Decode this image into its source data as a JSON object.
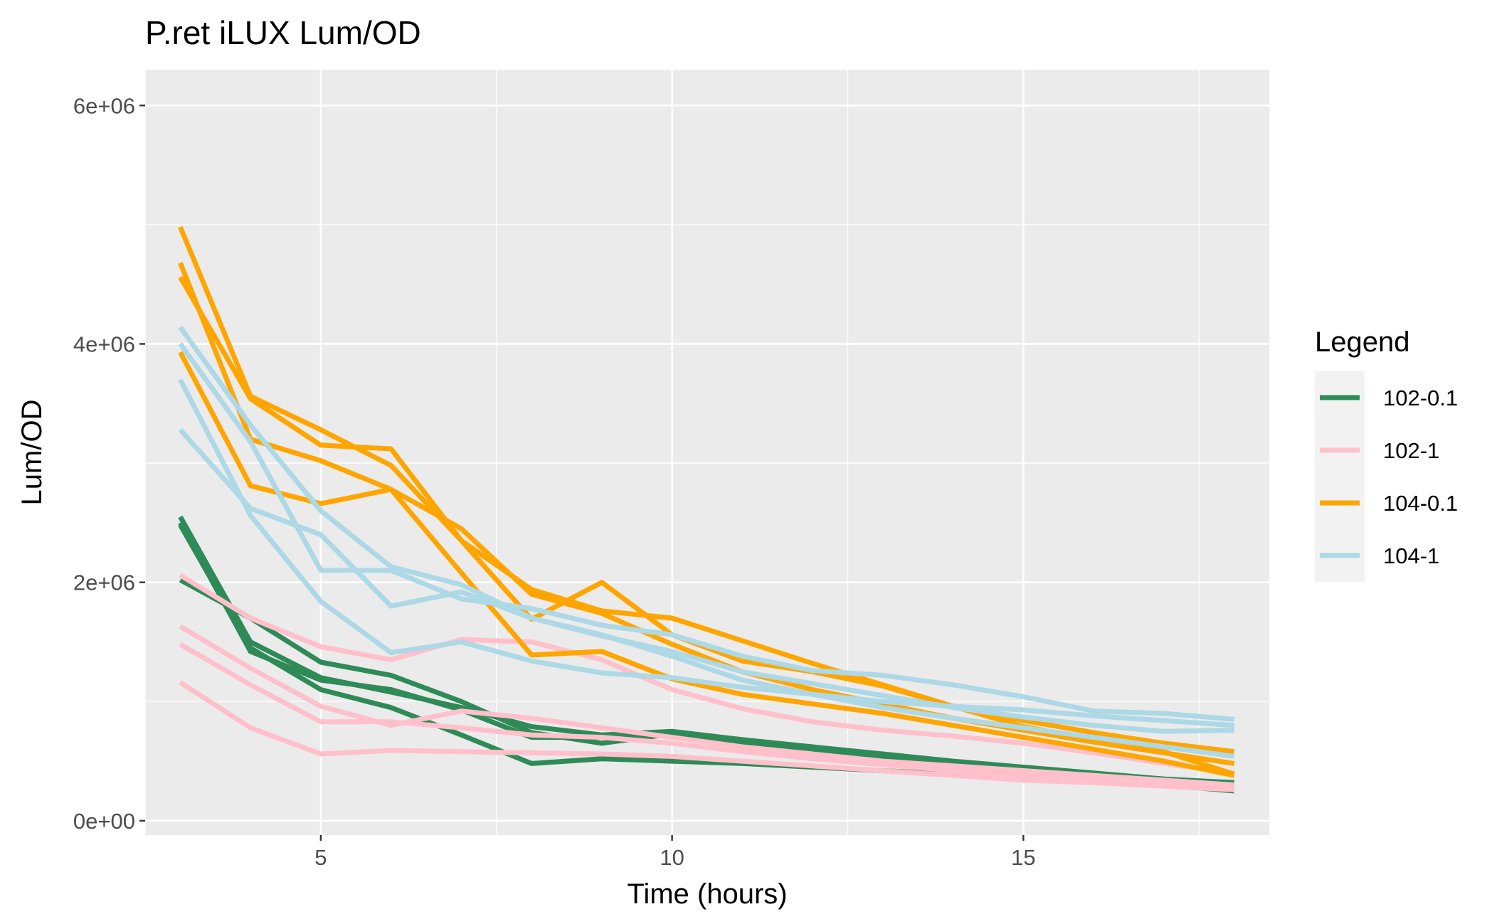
{
  "chart_data": {
    "type": "line",
    "title": "P.ret iLUX Lum/OD",
    "xlabel": "Time (hours)",
    "ylabel": "Lum/OD",
    "xlim": [
      2.5,
      18.5
    ],
    "ylim": [
      -120000,
      6300000
    ],
    "x_ticks": [
      5,
      10,
      15
    ],
    "x_tick_labels": [
      "5",
      "10",
      "15"
    ],
    "y_ticks": [
      0,
      2000000,
      4000000,
      6000000
    ],
    "y_tick_labels": [
      "0e+00",
      "2e+06",
      "4e+06",
      "6e+06"
    ],
    "grid": true,
    "legend": {
      "title": "Legend",
      "position": "right"
    },
    "x": [
      3,
      4,
      5,
      6,
      7,
      8,
      9,
      10,
      11,
      12,
      13,
      14,
      15,
      16,
      17,
      18
    ],
    "groups": [
      {
        "name": "102-0.1",
        "color": "#2e8b57",
        "lines": [
          [
            2550000,
            1500000,
            1200000,
            1080000,
            950000,
            790000,
            720000,
            750000,
            680000,
            620000,
            560000,
            500000,
            450000,
            400000,
            350000,
            300000
          ],
          [
            2480000,
            1450000,
            1100000,
            950000,
            720000,
            480000,
            520000,
            500000,
            480000,
            450000,
            420000,
            390000,
            360000,
            330000,
            300000,
            250000
          ],
          [
            2020000,
            1700000,
            1330000,
            1220000,
            1000000,
            740000,
            650000,
            730000,
            650000,
            580000,
            520000,
            470000,
            420000,
            380000,
            340000,
            320000
          ],
          [
            2500000,
            1420000,
            1180000,
            1100000,
            930000,
            700000,
            700000,
            720000,
            660000,
            600000,
            540000,
            480000,
            430000,
            390000,
            350000,
            320000
          ]
        ]
      },
      {
        "name": "102-1",
        "color": "#ffc0cb",
        "lines": [
          [
            2060000,
            1700000,
            1460000,
            1350000,
            1520000,
            1500000,
            1350000,
            1100000,
            940000,
            830000,
            760000,
            710000,
            650000,
            570000,
            480000,
            400000
          ],
          [
            1630000,
            1280000,
            960000,
            800000,
            920000,
            860000,
            780000,
            700000,
            620000,
            560000,
            500000,
            460000,
            420000,
            380000,
            340000,
            300000
          ],
          [
            1480000,
            1140000,
            830000,
            830000,
            780000,
            720000,
            700000,
            650000,
            580000,
            520000,
            470000,
            420000,
            380000,
            340000,
            300000,
            270000
          ],
          [
            1160000,
            780000,
            560000,
            590000,
            580000,
            570000,
            560000,
            540000,
            500000,
            460000,
            420000,
            380000,
            340000,
            320000,
            290000,
            260000
          ]
        ]
      },
      {
        "name": "104-0.1",
        "color": "#ffa500",
        "lines": [
          [
            4980000,
            3560000,
            3280000,
            2980000,
            2350000,
            1940000,
            1760000,
            1700000,
            1510000,
            1320000,
            1140000,
            960000,
            840000,
            740000,
            650000,
            580000
          ],
          [
            4680000,
            3200000,
            3020000,
            2780000,
            2450000,
            1900000,
            1740000,
            1480000,
            1250000,
            1100000,
            980000,
            860000,
            760000,
            660000,
            570000,
            480000
          ],
          [
            4560000,
            3540000,
            3150000,
            3120000,
            2350000,
            1690000,
            2000000,
            1560000,
            1340000,
            1250000,
            1130000,
            960000,
            790000,
            680000,
            580000,
            390000
          ],
          [
            3930000,
            2810000,
            2660000,
            2780000,
            2080000,
            1390000,
            1420000,
            1190000,
            1060000,
            980000,
            900000,
            800000,
            700000,
            600000,
            500000,
            380000
          ]
        ]
      },
      {
        "name": "104-1",
        "color": "#add8e6",
        "lines": [
          [
            4140000,
            3320000,
            2600000,
            2130000,
            1980000,
            1700000,
            1550000,
            1420000,
            1250000,
            1150000,
            1050000,
            950000,
            870000,
            800000,
            750000,
            760000
          ],
          [
            4000000,
            3180000,
            2100000,
            2100000,
            1860000,
            1780000,
            1640000,
            1560000,
            1380000,
            1260000,
            1220000,
            1140000,
            1040000,
            920000,
            900000,
            850000
          ],
          [
            3700000,
            2560000,
            1840000,
            1410000,
            1500000,
            1340000,
            1240000,
            1200000,
            1120000,
            1060000,
            1000000,
            960000,
            930000,
            880000,
            840000,
            800000
          ],
          [
            3280000,
            2620000,
            2400000,
            1800000,
            1920000,
            1700000,
            1560000,
            1380000,
            1180000,
            1060000,
            950000,
            860000,
            780000,
            700000,
            620000,
            540000
          ]
        ]
      }
    ]
  }
}
